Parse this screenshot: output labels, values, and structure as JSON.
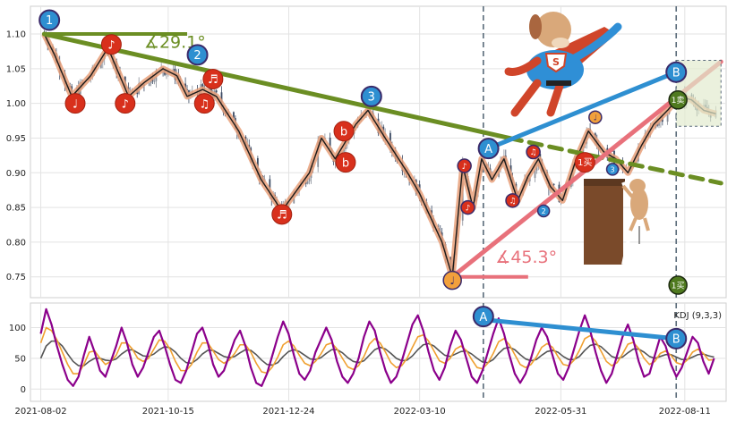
{
  "chart_data": {
    "type": "line",
    "panels": [
      {
        "name": "price",
        "chart_kind": "candlestick with hand-drawn trend annotations",
        "ylim": [
          0.72,
          1.14
        ],
        "yticks": [
          0.75,
          0.8,
          0.85,
          0.9,
          0.95,
          1.0,
          1.05,
          1.1
        ],
        "ytick_labels": [
          "0.75",
          "0.80",
          "0.85",
          "0.90",
          "0.95",
          "1.00",
          "1.05",
          "1.10"
        ],
        "close_path": [
          [
            "2021-08-04",
            1.1
          ],
          [
            "2021-08-10",
            1.07
          ],
          [
            "2021-08-20",
            1.01
          ],
          [
            "2021-08-31",
            1.04
          ],
          [
            "2021-09-10",
            1.08
          ],
          [
            "2021-09-22",
            1.01
          ],
          [
            "2021-10-01",
            1.03
          ],
          [
            "2021-10-12",
            1.05
          ],
          [
            "2021-10-20",
            1.04
          ],
          [
            "2021-10-26",
            1.01
          ],
          [
            "2021-11-04",
            1.02
          ],
          [
            "2021-11-12",
            1.01
          ],
          [
            "2021-11-25",
            0.96
          ],
          [
            "2021-12-08",
            0.89
          ],
          [
            "2021-12-20",
            0.845
          ],
          [
            "2022-01-05",
            0.9
          ],
          [
            "2022-01-12",
            0.95
          ],
          [
            "2022-01-20",
            0.92
          ],
          [
            "2022-02-01",
            0.97
          ],
          [
            "2022-02-08",
            0.99
          ],
          [
            "2022-02-18",
            0.95
          ],
          [
            "2022-03-03",
            0.9
          ],
          [
            "2022-03-10",
            0.87
          ],
          [
            "2022-03-23",
            0.8
          ],
          [
            "2022-03-29",
            0.75
          ],
          [
            "2022-04-01",
            0.83
          ],
          [
            "2022-04-04",
            0.91
          ],
          [
            "2022-04-10",
            0.85
          ],
          [
            "2022-04-15",
            0.92
          ],
          [
            "2022-04-21",
            0.89
          ],
          [
            "2022-04-28",
            0.92
          ],
          [
            "2022-05-06",
            0.86
          ],
          [
            "2022-05-12",
            0.895
          ],
          [
            "2022-05-18",
            0.92
          ],
          [
            "2022-05-25",
            0.88
          ],
          [
            "2022-06-01",
            0.86
          ],
          [
            "2022-06-09",
            0.92
          ],
          [
            "2022-06-16",
            0.96
          ],
          [
            "2022-06-25",
            0.93
          ],
          [
            "2022-07-02",
            0.92
          ],
          [
            "2022-07-09",
            0.9
          ],
          [
            "2022-07-17",
            0.94
          ],
          [
            "2022-07-24",
            0.97
          ],
          [
            "2022-08-01",
            0.99
          ],
          [
            "2022-08-08",
            1.01
          ],
          [
            "2022-08-15",
            1.005
          ],
          [
            "2022-08-22",
            0.99
          ],
          [
            "2022-08-29",
            0.985
          ]
        ],
        "trendlines": [
          {
            "color": "#6b8e23",
            "from": [
              "2021-08-04",
              1.1
            ],
            "to": [
              "2022-05-01",
              0.95
            ],
            "style": "solid"
          },
          {
            "color": "#6b8e23",
            "from": [
              "2022-05-01",
              0.95
            ],
            "to": [
              "2022-09-01",
              0.885
            ],
            "style": "dashed"
          },
          {
            "color": "#e8717b",
            "from": [
              "2022-03-29",
              0.75
            ],
            "to": [
              "2022-09-01",
              1.06
            ],
            "style": "solid"
          },
          {
            "color": "#2e8fd1",
            "from": [
              "2022-04-19",
              0.935
            ],
            "to": [
              "2022-08-06",
              1.045
            ],
            "style": "solid"
          }
        ],
        "angle_labels": [
          {
            "text": "∡29.1°",
            "color": "#6b8e23",
            "at": [
              "2021-10-01",
              1.08
            ]
          },
          {
            "text": "∡45.3°",
            "color": "#e8717b",
            "at": [
              "2022-04-23",
              0.77
            ]
          }
        ],
        "markers": [
          {
            "text": "1",
            "kind": "blue-circle",
            "at": [
              "2021-08-07",
              1.12
            ]
          },
          {
            "text": "2",
            "kind": "blue-circle",
            "at": [
              "2021-11-01",
              1.07
            ]
          },
          {
            "text": "3",
            "kind": "blue-circle",
            "at": [
              "2022-02-10",
              1.01
            ]
          },
          {
            "text": "A",
            "kind": "blue-circle",
            "at": [
              "2022-04-19",
              0.935
            ]
          },
          {
            "text": "B",
            "kind": "blue-circle",
            "at": [
              "2022-08-06",
              1.045
            ]
          },
          {
            "text": "♩",
            "kind": "red-note",
            "at": [
              "2021-08-22",
              1.0
            ]
          },
          {
            "text": "♪",
            "kind": "red-note",
            "at": [
              "2021-09-12",
              1.085
            ]
          },
          {
            "text": "♪",
            "kind": "red-note",
            "at": [
              "2021-09-20",
              1.0
            ]
          },
          {
            "text": "♫",
            "kind": "red-note",
            "at": [
              "2021-11-05",
              1.0
            ]
          },
          {
            "text": "♬",
            "kind": "red-note",
            "at": [
              "2021-11-10",
              1.035
            ]
          },
          {
            "text": "♬",
            "kind": "red-note",
            "at": [
              "2021-12-20",
              0.84
            ]
          },
          {
            "text": "b",
            "kind": "red-note",
            "at": [
              "2022-01-25",
              0.96
            ]
          },
          {
            "text": "b",
            "kind": "red-note",
            "at": [
              "2022-01-26",
              0.915
            ]
          },
          {
            "text": "♪",
            "kind": "red-note-small",
            "at": [
              "2022-04-05",
              0.91
            ]
          },
          {
            "text": "♪",
            "kind": "red-note-small",
            "at": [
              "2022-04-07",
              0.85
            ]
          },
          {
            "text": "♫",
            "kind": "red-note-small",
            "at": [
              "2022-05-03",
              0.86
            ]
          },
          {
            "text": "♫",
            "kind": "red-note-small",
            "at": [
              "2022-05-15",
              0.93
            ]
          },
          {
            "text": "2",
            "kind": "blue-small",
            "at": [
              "2022-05-21",
              0.845
            ]
          },
          {
            "text": "♩",
            "kind": "orange-note-small",
            "at": [
              "2022-06-20",
              0.98
            ]
          },
          {
            "text": "3",
            "kind": "blue-small",
            "at": [
              "2022-06-30",
              0.905
            ]
          },
          {
            "text": "1买",
            "kind": "red-buy",
            "at": [
              "2022-06-14",
              0.915
            ]
          },
          {
            "text": "1卖",
            "kind": "green-sell",
            "at": [
              "2022-08-07",
              1.005
            ]
          },
          {
            "text": "1买",
            "kind": "green-buy",
            "at": [
              "2022-08-07",
              0.738
            ]
          },
          {
            "text": "♩",
            "kind": "orange-note",
            "at": [
              "2022-03-29",
              0.745
            ]
          }
        ],
        "vertical_lines": [
          "2022-04-16",
          "2022-08-06"
        ]
      },
      {
        "name": "kdj",
        "legend": "KDJ (9,3,3)",
        "ylim": [
          -20,
          140
        ],
        "yticks": [
          0,
          50,
          100
        ],
        "ytick_labels": [
          "0",
          "50",
          "100"
        ],
        "series": [
          {
            "color": "#8b008b",
            "values": [
              90,
              130,
              105,
              70,
              40,
              15,
              5,
              20,
              55,
              85,
              60,
              30,
              20,
              45,
              70,
              100,
              75,
              40,
              20,
              35,
              60,
              85,
              95,
              70,
              40,
              15,
              10,
              30,
              60,
              90,
              100,
              75,
              40,
              20,
              30,
              55,
              80,
              95,
              70,
              35,
              10,
              5,
              25,
              55,
              85,
              110,
              90,
              55,
              25,
              15,
              30,
              60,
              80,
              100,
              80,
              45,
              20,
              10,
              25,
              50,
              85,
              110,
              95,
              60,
              30,
              10,
              20,
              45,
              75,
              105,
              120,
              95,
              60,
              30,
              15,
              35,
              70,
              95,
              80,
              50,
              20,
              10,
              30,
              60,
              90,
              115,
              90,
              55,
              25,
              10,
              25,
              50,
              80,
              100,
              85,
              55,
              25,
              15,
              35,
              65,
              95,
              120,
              95,
              60,
              30,
              10,
              25,
              55,
              85,
              105,
              80,
              45,
              20,
              25,
              55,
              85,
              70,
              40,
              20,
              35,
              60,
              85,
              75,
              45,
              25,
              50
            ]
          },
          {
            "color": "#f0a030",
            "values": [
              75,
              100,
              95,
              80,
              60,
              40,
              25,
              25,
              40,
              60,
              62,
              50,
              40,
              45,
              55,
              75,
              75,
              65,
              50,
              45,
              50,
              65,
              80,
              78,
              65,
              45,
              30,
              30,
              40,
              60,
              75,
              75,
              62,
              48,
              42,
              47,
              58,
              72,
              72,
              60,
              42,
              28,
              26,
              36,
              52,
              72,
              78,
              70,
              55,
              42,
              38,
              45,
              57,
              72,
              75,
              65,
              50,
              36,
              32,
              38,
              53,
              73,
              82,
              75,
              60,
              43,
              35,
              38,
              50,
              68,
              85,
              88,
              78,
              62,
              46,
              42,
              50,
              65,
              70,
              63,
              48,
              35,
              33,
              42,
              58,
              77,
              82,
              72,
              56,
              40,
              35,
              40,
              52,
              68,
              74,
              68,
              53,
              40,
              38,
              47,
              63,
              82,
              87,
              78,
              62,
              45,
              38,
              43,
              57,
              73,
              76,
              66,
              50,
              40,
              45,
              58,
              62,
              55,
              43,
              40,
              47,
              60,
              65,
              58,
              47,
              48
            ]
          },
          {
            "color": "#555555",
            "values": [
              50,
              70,
              78,
              78,
              70,
              57,
              45,
              38,
              38,
              45,
              50,
              50,
              47,
              46,
              49,
              57,
              63,
              64,
              59,
              54,
              53,
              57,
              64,
              69,
              67,
              60,
              50,
              43,
              42,
              48,
              57,
              63,
              63,
              58,
              53,
              51,
              53,
              59,
              64,
              63,
              56,
              47,
              40,
              39,
              43,
              53,
              61,
              64,
              61,
              55,
              49,
              48,
              51,
              58,
              64,
              64,
              59,
              51,
              45,
              43,
              46,
              55,
              64,
              68,
              65,
              58,
              50,
              46,
              47,
              54,
              64,
              72,
              74,
              70,
              62,
              55,
              53,
              57,
              61,
              62,
              57,
              50,
              44,
              43,
              48,
              58,
              66,
              68,
              64,
              56,
              49,
              46,
              48,
              55,
              61,
              63,
              60,
              53,
              48,
              48,
              53,
              63,
              71,
              73,
              69,
              61,
              53,
              50,
              52,
              59,
              65,
              65,
              60,
              53,
              50,
              53,
              56,
              56,
              52,
              48,
              48,
              52,
              56,
              57,
              54,
              52
            ]
          }
        ],
        "trendlines": [
          {
            "color": "#2e8fd1",
            "from": [
              "2022-04-16",
              113
            ],
            "to": [
              "2022-08-06",
              82
            ],
            "style": "solid"
          }
        ],
        "markers": [
          {
            "text": "A",
            "kind": "blue-circle",
            "at": [
              "2022-04-16",
              118
            ]
          },
          {
            "text": "B",
            "kind": "blue-circle",
            "at": [
              "2022-08-06",
              82
            ]
          }
        ],
        "vertical_lines": [
          "2022-04-16",
          "2022-08-06"
        ]
      }
    ],
    "x_range": [
      "2021-07-27",
      "2022-09-04"
    ],
    "xticks": [
      "2021-08-02",
      "2021-10-15",
      "2021-12-24",
      "2022-03-10",
      "2022-05-31",
      "2022-08-11"
    ],
    "xtick_labels": [
      "2021-08-02",
      "2021-10-15",
      "2021-12-24",
      "2022-03-10",
      "2022-05-31",
      "2022-08-11"
    ],
    "grid": true
  }
}
